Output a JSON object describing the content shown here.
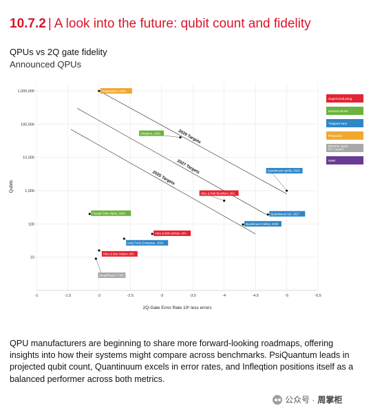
{
  "header": {
    "section": "10.7.2",
    "title": "A look into the future: qubit count and fidelity"
  },
  "chart_title": "QPUs vs 2Q gate fidelity",
  "chart_subtitle": "Announced QPUs",
  "chart_data": {
    "type": "scatter",
    "xlabel": "2Q-Gate Error Rate 10ˣ less errors",
    "ylabel": "Qubits",
    "xlim": [
      -1,
      -5.5
    ],
    "ylim_log10": [
      0,
      6.25
    ],
    "x_ticks": [
      "-1",
      "-1.5",
      "-2",
      "-2.5",
      "-3",
      "-3.5",
      "-4",
      "-4.5",
      "-5",
      "-5.5"
    ],
    "y_ticks": [
      "10",
      "100",
      "1,000",
      "10,000",
      "100,000",
      "1,000,000"
    ],
    "grid": true,
    "legend_position": "right",
    "categories": [
      {
        "name": "Superconducting",
        "color": "#e42333"
      },
      {
        "name": "Neutral Atoms",
        "color": "#6cb23f"
      },
      {
        "name": "Trapped Ions",
        "color": "#2f86c7"
      },
      {
        "name": "Photonics",
        "color": "#f0a830"
      },
      {
        "name": "Electron Spin/\nRF Control",
        "color": "#a8a8a8"
      },
      {
        "name": "NMR",
        "color": "#6a3b92"
      }
    ],
    "points": [
      {
        "label": "PsiQuantum, 2028",
        "x": -2.0,
        "y": 1000000,
        "category": 3
      },
      {
        "label": "Infleqtion, 2028",
        "x": -3.3,
        "y": 40000,
        "category": 1
      },
      {
        "label": "Quantinuum Apollo, 2029",
        "x": -5.0,
        "y": 1000,
        "category": 2
      },
      {
        "label": "Alice & Bob Beryllium, N/A",
        "x": -4.0,
        "y": 500,
        "category": 0
      },
      {
        "label": "Quantinuum Sol, 2027",
        "x": -4.7,
        "y": 192,
        "category": 2
      },
      {
        "label": "Quantinuum Helios, 2025",
        "x": -4.3,
        "y": 96,
        "category": 2
      },
      {
        "label": "Pasqal Orion Alpha, 2024",
        "x": -1.85,
        "y": 200,
        "category": 1
      },
      {
        "label": "Alice & Bob Lithium, N/A",
        "x": -2.85,
        "y": 50,
        "category": 0
      },
      {
        "label": "IonQ Forte Enterprise, 2024",
        "x": -2.4,
        "y": 36,
        "category": 2
      },
      {
        "label": "Alice & Bob Helium, N/A",
        "x": -2.0,
        "y": 16,
        "category": 0
      },
      {
        "label": "Diraq/Rosen T, N/A",
        "x": -1.95,
        "y": 9,
        "category": 4
      }
    ],
    "trend_lines": [
      {
        "label": "2029 Targets",
        "from": [
          -2.0,
          1000000
        ],
        "to": [
          -5.0,
          800
        ]
      },
      {
        "label": "2027 Targets",
        "from": [
          -1.65,
          300000
        ],
        "to": [
          -4.7,
          180
        ]
      },
      {
        "label": "2025 Targets",
        "from": [
          -1.55,
          70000
        ],
        "to": [
          -4.5,
          50
        ]
      }
    ]
  },
  "description": "QPU manufacturers are beginning to share more forward-looking roadmaps, offering insights into how their systems might compare across benchmarks. PsiQuantum leads in projected qubit count, Quantinuum excels in error rates, and Infleqtion positions itself as a balanced performer across both metrics.",
  "watermark": {
    "prefix": "公众号 ·",
    "name": "周掌柜"
  }
}
